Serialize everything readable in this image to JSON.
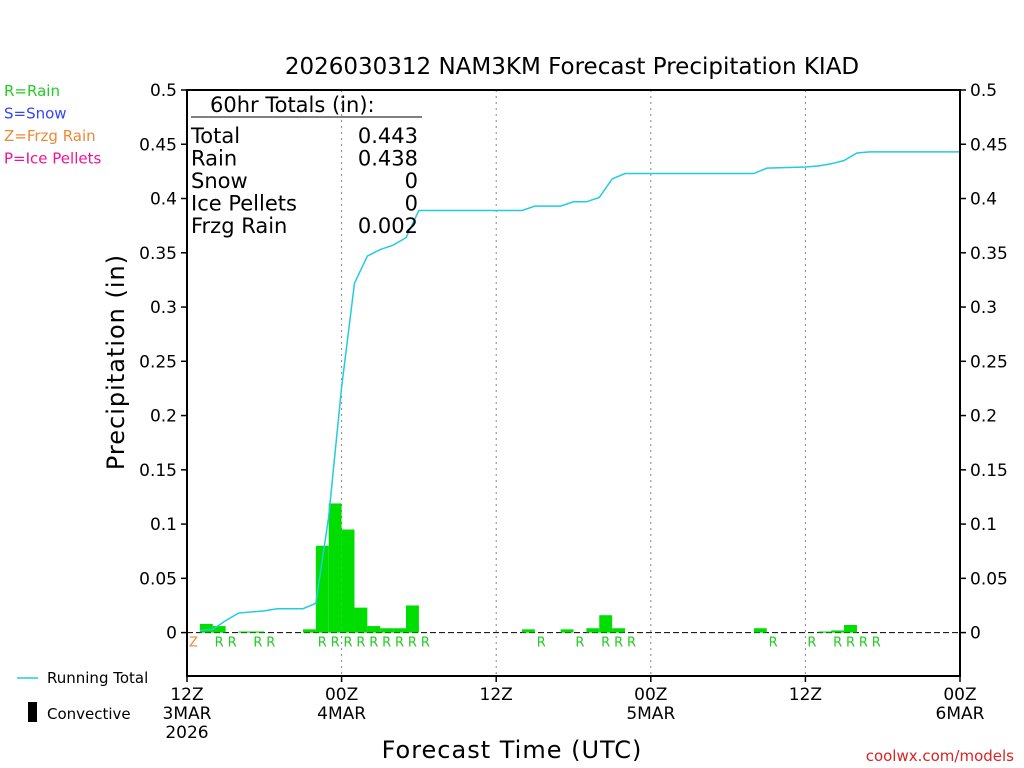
{
  "colors": {
    "rain": "#22cc22",
    "snow": "#3344ff",
    "frzg_rain": "#ee8833",
    "ice_pellets": "#ee1199",
    "running_total": "#22ccdd",
    "bar": "#00dd00"
  },
  "chart_data": {
    "type": "bar",
    "title": "2026030312 NAM3KM Forecast Precipitation KIAD",
    "xlabel": "Forecast Time (UTC)",
    "ylabel": "Precipitation (in)",
    "xlim": [
      0,
      60
    ],
    "ylim": [
      -0.04,
      0.5
    ],
    "yticks": [
      "0.5",
      "0.45",
      "0.4",
      "0.35",
      "0.3",
      "0.25",
      "0.2",
      "0.15",
      "0.1",
      "0.05",
      "0"
    ],
    "ytick_values": [
      0.5,
      0.45,
      0.4,
      0.35,
      0.3,
      0.25,
      0.2,
      0.15,
      0.1,
      0.05,
      0
    ],
    "xticks": [
      {
        "hour": 0,
        "lines": [
          "12Z",
          "3MAR",
          "2026"
        ]
      },
      {
        "hour": 12,
        "lines": [
          "00Z",
          "4MAR"
        ]
      },
      {
        "hour": 24,
        "lines": [
          "12Z"
        ]
      },
      {
        "hour": 36,
        "lines": [
          "00Z",
          "5MAR"
        ]
      },
      {
        "hour": 48,
        "lines": [
          "12Z"
        ]
      },
      {
        "hour": 60,
        "lines": [
          "00Z",
          "6MAR"
        ]
      }
    ],
    "gridlines_hours": [
      12,
      24,
      36,
      48
    ],
    "hourly_precip": [
      {
        "hour": 2,
        "value": 0.008
      },
      {
        "hour": 3,
        "value": 0.006
      },
      {
        "hour": 5,
        "value": 0.001
      },
      {
        "hour": 6,
        "value": 0.001
      },
      {
        "hour": 10,
        "value": 0.003
      },
      {
        "hour": 11,
        "value": 0.08
      },
      {
        "hour": 12,
        "value": 0.119
      },
      {
        "hour": 13,
        "value": 0.095
      },
      {
        "hour": 14,
        "value": 0.023
      },
      {
        "hour": 15,
        "value": 0.006
      },
      {
        "hour": 16,
        "value": 0.004
      },
      {
        "hour": 17,
        "value": 0.004
      },
      {
        "hour": 18,
        "value": 0.025
      },
      {
        "hour": 27,
        "value": 0.003
      },
      {
        "hour": 30,
        "value": 0.003
      },
      {
        "hour": 32,
        "value": 0.004
      },
      {
        "hour": 33,
        "value": 0.016
      },
      {
        "hour": 34,
        "value": 0.004
      },
      {
        "hour": 45,
        "value": 0.004
      },
      {
        "hour": 50,
        "value": 0.001
      },
      {
        "hour": 51,
        "value": 0.002
      },
      {
        "hour": 52,
        "value": 0.007
      }
    ],
    "precip_type_markers": [
      {
        "hour": 1,
        "code": "Z"
      },
      {
        "hour": 3,
        "code": "R"
      },
      {
        "hour": 4,
        "code": "R"
      },
      {
        "hour": 6,
        "code": "R"
      },
      {
        "hour": 7,
        "code": "R"
      },
      {
        "hour": 11,
        "code": "R"
      },
      {
        "hour": 12,
        "code": "R"
      },
      {
        "hour": 13,
        "code": "R"
      },
      {
        "hour": 14,
        "code": "R"
      },
      {
        "hour": 15,
        "code": "R"
      },
      {
        "hour": 16,
        "code": "R"
      },
      {
        "hour": 17,
        "code": "R"
      },
      {
        "hour": 18,
        "code": "R"
      },
      {
        "hour": 19,
        "code": "R"
      },
      {
        "hour": 28,
        "code": "R"
      },
      {
        "hour": 31,
        "code": "R"
      },
      {
        "hour": 33,
        "code": "R"
      },
      {
        "hour": 34,
        "code": "R"
      },
      {
        "hour": 35,
        "code": "R"
      },
      {
        "hour": 46,
        "code": "R"
      },
      {
        "hour": 49,
        "code": "R"
      },
      {
        "hour": 51,
        "code": "R"
      },
      {
        "hour": 52,
        "code": "R"
      },
      {
        "hour": 53,
        "code": "R"
      },
      {
        "hour": 54,
        "code": "R"
      }
    ],
    "running_total": {
      "name": "Running Total",
      "points": [
        [
          1,
          0.002
        ],
        [
          2,
          0.003
        ],
        [
          3,
          0.011
        ],
        [
          4,
          0.018
        ],
        [
          6,
          0.02
        ],
        [
          7,
          0.022
        ],
        [
          9,
          0.022
        ],
        [
          10,
          0.027
        ],
        [
          11,
          0.107
        ],
        [
          12,
          0.226
        ],
        [
          13,
          0.322
        ],
        [
          14,
          0.347
        ],
        [
          15,
          0.353
        ],
        [
          16,
          0.357
        ],
        [
          17,
          0.364
        ],
        [
          18,
          0.389
        ],
        [
          26,
          0.389
        ],
        [
          27,
          0.393
        ],
        [
          29,
          0.393
        ],
        [
          30,
          0.397
        ],
        [
          31,
          0.397
        ],
        [
          32,
          0.401
        ],
        [
          33,
          0.418
        ],
        [
          34,
          0.423
        ],
        [
          44,
          0.423
        ],
        [
          45,
          0.428
        ],
        [
          48,
          0.429
        ],
        [
          49,
          0.43
        ],
        [
          50,
          0.432
        ],
        [
          51,
          0.435
        ],
        [
          52,
          0.442
        ],
        [
          53,
          0.443
        ],
        [
          60,
          0.443
        ]
      ]
    },
    "legend": {
      "running_total": "Running Total",
      "convective": "Convective"
    }
  },
  "ptype_legend": [
    {
      "label": "R=Rain",
      "color_key": "rain"
    },
    {
      "label": "S=Snow",
      "color_key": "snow"
    },
    {
      "label": "Z=Frzg Rain",
      "color_key": "frzg_rain"
    },
    {
      "label": "P=Ice Pellets",
      "color_key": "ice_pellets"
    }
  ],
  "totals": {
    "heading": "60hr Totals (in):",
    "rows": [
      {
        "label": "Total",
        "value": "0.443"
      },
      {
        "label": "Rain",
        "value": "0.438"
      },
      {
        "label": "Snow",
        "value": "0"
      },
      {
        "label": "Ice Pellets",
        "value": "0"
      },
      {
        "label": "Frzg Rain",
        "value": "0.002"
      }
    ]
  },
  "credit": "coolwx.com/models"
}
